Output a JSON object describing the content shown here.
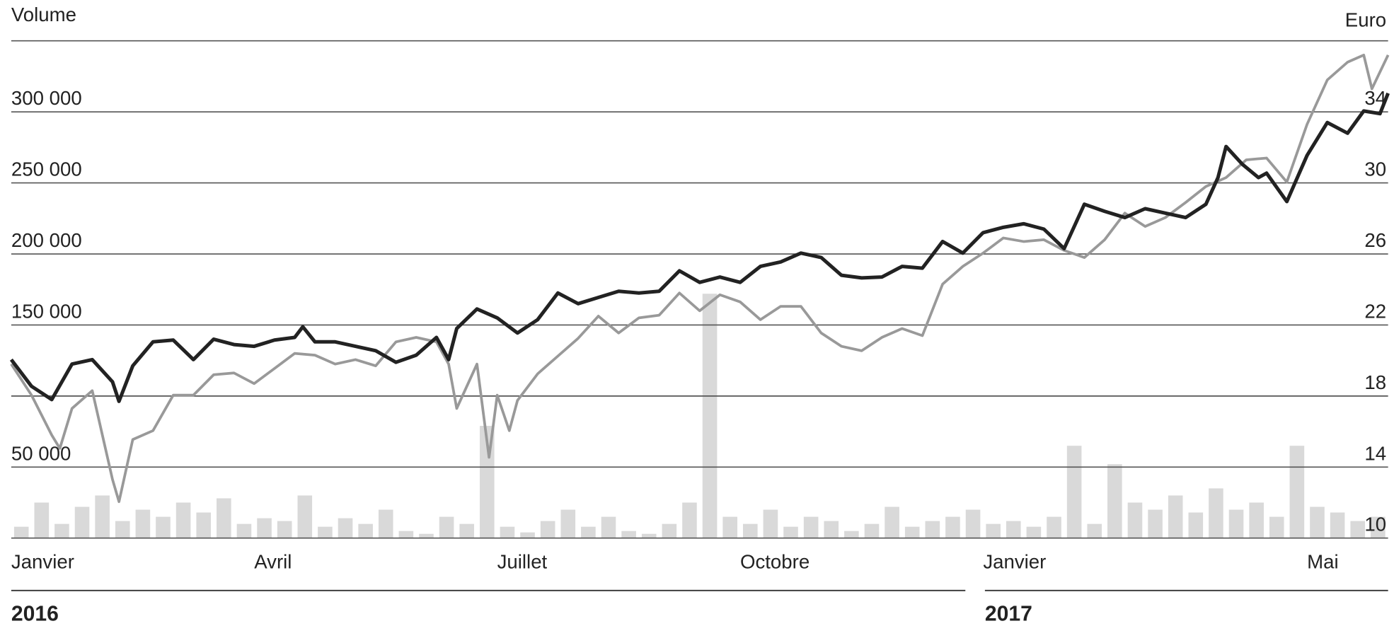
{
  "chart_data": {
    "type": "line",
    "ylabel": "Volume",
    "y2label": "Euro",
    "xlim": [
      0,
      17
    ],
    "xticks": [
      {
        "value": 0,
        "label": "Janvier"
      },
      {
        "value": 3,
        "label": "Avril"
      },
      {
        "value": 6,
        "label": "Juillet"
      },
      {
        "value": 9,
        "label": "Octobre"
      },
      {
        "value": 12,
        "label": "Janvier"
      },
      {
        "value": 16,
        "label": "Mai"
      }
    ],
    "xgroups": [
      {
        "label": "2016",
        "range": [
          0,
          12
        ]
      },
      {
        "label": "2017",
        "range": [
          12,
          17
        ]
      }
    ],
    "ylim": [
      0,
      350000
    ],
    "yticks": [
      {
        "value": 50000,
        "label": "50 000"
      },
      {
        "value": 150000,
        "label": "150 000"
      },
      {
        "value": 200000,
        "label": "200 000"
      },
      {
        "value": 250000,
        "label": "250 000"
      },
      {
        "value": 300000,
        "label": "300 000"
      }
    ],
    "y2lim": [
      10,
      38
    ],
    "y2ticks": [
      10,
      14,
      18,
      22,
      26,
      30,
      34
    ],
    "grid": true,
    "series": [
      {
        "type": "bar",
        "color": "#d9d9d9",
        "x": [
          0.125,
          0.375,
          0.625,
          0.875,
          1.125,
          1.375,
          1.625,
          1.875,
          2.125,
          2.375,
          2.625,
          2.875,
          3.125,
          3.375,
          3.625,
          3.875,
          4.125,
          4.375,
          4.625,
          4.875,
          5.125,
          5.375,
          5.625,
          5.875,
          6.125,
          6.375,
          6.625,
          6.875,
          7.125,
          7.375,
          7.625,
          7.875,
          8.125,
          8.375,
          8.625,
          8.875,
          9.125,
          9.375,
          9.625,
          9.875,
          10.125,
          10.375,
          10.625,
          10.875,
          11.125,
          11.375,
          11.625,
          11.875,
          12.125,
          12.375,
          12.625,
          12.875,
          13.125,
          13.375,
          13.625,
          13.875,
          14.125,
          14.375,
          14.625,
          14.875,
          15.125,
          15.375,
          15.625,
          15.875,
          16.125,
          16.375,
          16.625,
          16.875
        ],
        "values": [
          8000,
          25000,
          10000,
          22000,
          30000,
          12000,
          20000,
          15000,
          25000,
          18000,
          28000,
          10000,
          14000,
          12000,
          30000,
          8000,
          14000,
          10000,
          20000,
          5000,
          3000,
          15000,
          10000,
          79000,
          8000,
          4000,
          12000,
          20000,
          8000,
          15000,
          5000,
          3000,
          10000,
          25000,
          172000,
          15000,
          10000,
          20000,
          8000,
          15000,
          12000,
          5000,
          10000,
          22000,
          8000,
          12000,
          15000,
          20000,
          10000,
          12000,
          8000,
          15000,
          65000,
          10000,
          52000,
          25000,
          20000,
          30000,
          18000,
          35000,
          20000,
          25000,
          15000,
          65000,
          22000,
          18000,
          12000,
          15000
        ]
      },
      {
        "axis": "y2",
        "color": "#999999",
        "x": [
          0,
          0.25,
          0.5,
          0.6,
          0.75,
          1,
          1.25,
          1.33,
          1.5,
          1.75,
          2,
          2.25,
          2.5,
          2.75,
          3,
          3.25,
          3.5,
          3.75,
          4,
          4.25,
          4.5,
          4.75,
          5,
          5.25,
          5.4,
          5.5,
          5.75,
          5.9,
          6,
          6.15,
          6.25,
          6.5,
          6.75,
          7,
          7.25,
          7.5,
          7.75,
          8,
          8.25,
          8.5,
          8.75,
          9,
          9.25,
          9.5,
          9.75,
          10,
          10.25,
          10.5,
          10.75,
          11,
          11.25,
          11.5,
          11.75,
          12,
          12.25,
          12.5,
          12.75,
          13,
          13.25,
          13.5,
          13.75,
          14,
          14.25,
          14.5,
          14.75,
          15,
          15.25,
          15.5,
          15.75,
          16,
          16.25,
          16.5,
          16.7,
          16.8,
          17
        ],
        "values": [
          19.8,
          18.05,
          15.8,
          15.05,
          17.3,
          18.3,
          13.3,
          12.05,
          15.55,
          16.05,
          18.05,
          18.05,
          19.2,
          19.3,
          18.7,
          19.55,
          20.4,
          20.3,
          19.8,
          20.05,
          19.7,
          21.05,
          21.3,
          21.05,
          19.8,
          17.3,
          19.8,
          14.55,
          18.05,
          16.05,
          17.75,
          19.25,
          20.25,
          21.25,
          22.5,
          21.55,
          22.4,
          22.55,
          23.8,
          22.8,
          23.7,
          23.3,
          22.3,
          23.05,
          23.05,
          21.55,
          20.8,
          20.55,
          21.3,
          21.8,
          21.4,
          24.3,
          25.3,
          26.05,
          26.9,
          26.7,
          26.8,
          26.2,
          25.8,
          26.8,
          28.3,
          27.55,
          28.05,
          28.9,
          29.8,
          30.3,
          31.3,
          31.4,
          30.05,
          33.3,
          35.8,
          36.8,
          37.2,
          35.3,
          37.2
        ]
      },
      {
        "axis": "y2",
        "color": "#222222",
        "x": [
          0,
          0.25,
          0.5,
          0.75,
          1,
          1.25,
          1.33,
          1.5,
          1.75,
          2,
          2.25,
          2.5,
          2.75,
          3,
          3.25,
          3.5,
          3.6,
          3.75,
          4,
          4.25,
          4.5,
          4.75,
          5,
          5.25,
          5.4,
          5.5,
          5.75,
          6,
          6.25,
          6.5,
          6.75,
          7,
          7.25,
          7.5,
          7.75,
          8,
          8.25,
          8.5,
          8.75,
          9,
          9.25,
          9.5,
          9.75,
          10,
          10.25,
          10.5,
          10.75,
          11,
          11.25,
          11.5,
          11.75,
          12,
          12.25,
          12.5,
          12.75,
          13,
          13.25,
          13.5,
          13.75,
          14,
          14.25,
          14.5,
          14.75,
          14.9,
          15,
          15.2,
          15.4,
          15.5,
          15.75,
          16,
          16.25,
          16.5,
          16.7,
          16.9,
          17
        ],
        "values": [
          20.05,
          18.55,
          17.8,
          19.8,
          20.05,
          18.8,
          17.7,
          19.7,
          21.05,
          21.15,
          20.05,
          21.2,
          20.9,
          20.8,
          21.15,
          21.3,
          21.9,
          21.05,
          21.05,
          20.8,
          20.55,
          19.9,
          20.3,
          21.3,
          20.05,
          21.8,
          22.9,
          22.4,
          21.55,
          22.3,
          23.8,
          23.2,
          23.55,
          23.9,
          23.8,
          23.9,
          25.05,
          24.4,
          24.7,
          24.4,
          25.3,
          25.55,
          26.05,
          25.8,
          24.8,
          24.65,
          24.7,
          25.3,
          25.2,
          26.7,
          26.05,
          27.2,
          27.5,
          27.7,
          27.4,
          26.3,
          28.8,
          28.4,
          28.05,
          28.55,
          28.3,
          28.05,
          28.8,
          30.3,
          32.05,
          31.05,
          30.3,
          30.55,
          28.95,
          31.55,
          33.4,
          32.8,
          34.05,
          33.9,
          35.05
        ]
      }
    ]
  }
}
